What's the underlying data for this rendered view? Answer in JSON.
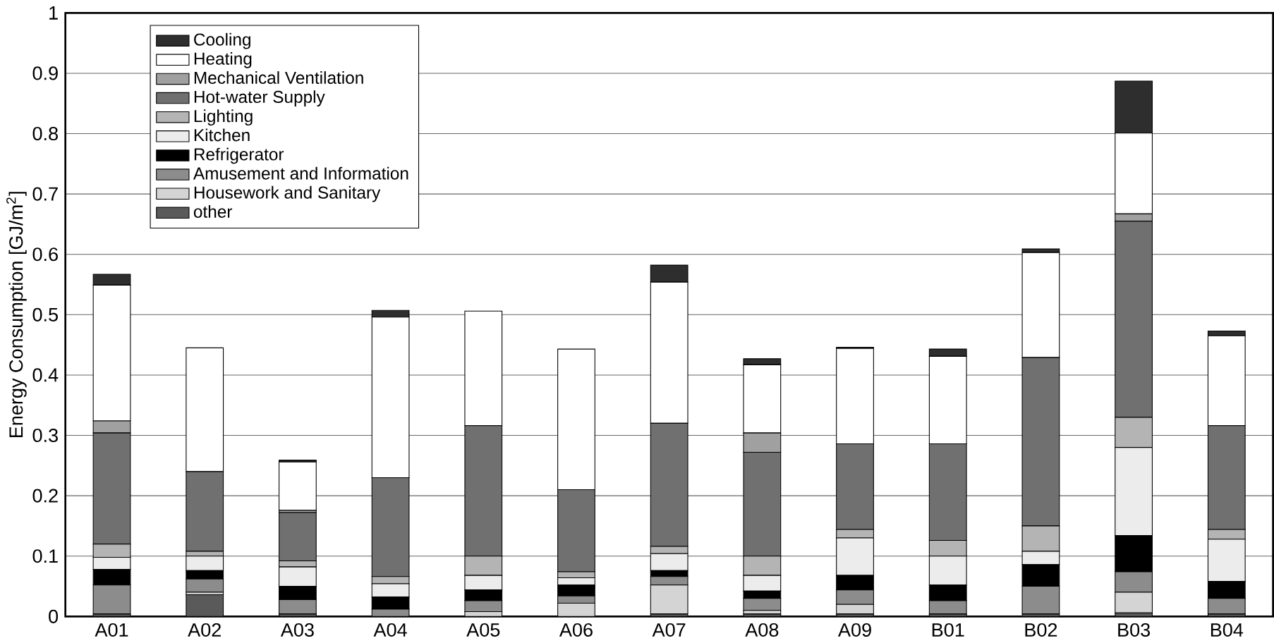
{
  "chart_data": {
    "type": "bar",
    "stacked": true,
    "ylabel": "Energy Consumption [GJ/m$^{2}$]",
    "categories": [
      "A01",
      "A02",
      "A03",
      "A04",
      "A05",
      "A06",
      "A07",
      "A08",
      "A09",
      "B01",
      "B02",
      "B03",
      "B04"
    ],
    "series": [
      {
        "name": "other",
        "color": "#5a5a5a",
        "values": [
          0.004,
          0.036,
          0.004,
          null,
          null,
          null,
          0.004,
          0.004,
          0.004,
          0.004,
          0.004,
          0.006,
          0.004
        ]
      },
      {
        "name": "Housework and Sanitary",
        "color": "#d4d4d4",
        "values": [
          null,
          0.004,
          null,
          null,
          0.008,
          0.022,
          0.048,
          0.006,
          0.016,
          null,
          null,
          0.034,
          null
        ]
      },
      {
        "name": "Amusement and Information",
        "color": "#8c8c8c",
        "values": [
          0.048,
          0.022,
          0.024,
          0.012,
          0.018,
          0.012,
          0.014,
          0.02,
          0.024,
          0.022,
          0.046,
          0.034,
          0.026
        ]
      },
      {
        "name": "Refrigerator",
        "color": "#000000",
        "values": [
          0.026,
          0.014,
          0.022,
          0.02,
          0.018,
          0.018,
          0.01,
          0.012,
          0.024,
          0.026,
          0.036,
          0.06,
          0.028
        ]
      },
      {
        "name": "Kitchen",
        "color": "#ececec",
        "values": [
          0.02,
          0.024,
          0.032,
          0.022,
          0.024,
          0.012,
          0.028,
          0.026,
          0.062,
          0.048,
          0.022,
          0.146,
          0.07
        ]
      },
      {
        "name": "Lighting",
        "color": "#b4b4b4",
        "values": [
          0.022,
          0.008,
          0.01,
          0.012,
          0.032,
          0.01,
          0.012,
          0.032,
          0.014,
          0.026,
          0.042,
          0.05,
          0.016
        ]
      },
      {
        "name": "Hot-water Supply",
        "color": "#707070",
        "values": [
          0.184,
          0.132,
          0.08,
          0.164,
          0.216,
          0.136,
          0.204,
          0.172,
          0.142,
          0.16,
          0.279,
          0.325,
          0.172
        ]
      },
      {
        "name": "Mechanical Ventilation",
        "color": "#a0a0a0",
        "values": [
          0.02,
          null,
          0.004,
          null,
          null,
          null,
          null,
          0.032,
          null,
          null,
          null,
          0.012,
          null
        ]
      },
      {
        "name": "Heating",
        "color": "#ffffff",
        "values": [
          0.225,
          0.205,
          0.08,
          0.266,
          0.19,
          0.233,
          0.234,
          0.113,
          0.158,
          0.145,
          0.174,
          0.134,
          0.149
        ]
      },
      {
        "name": "Cooling",
        "color": "#2e2e2e",
        "values": [
          0.018,
          null,
          0.003,
          0.011,
          null,
          null,
          0.028,
          0.01,
          0.002,
          0.012,
          0.006,
          0.086,
          0.008
        ]
      }
    ],
    "ylim": [
      0,
      1
    ],
    "yticks": [
      0,
      0.1,
      0.2,
      0.3,
      0.4,
      0.5,
      0.6,
      0.7,
      0.8,
      0.9,
      1
    ],
    "grid": "y",
    "legend": "top left"
  }
}
